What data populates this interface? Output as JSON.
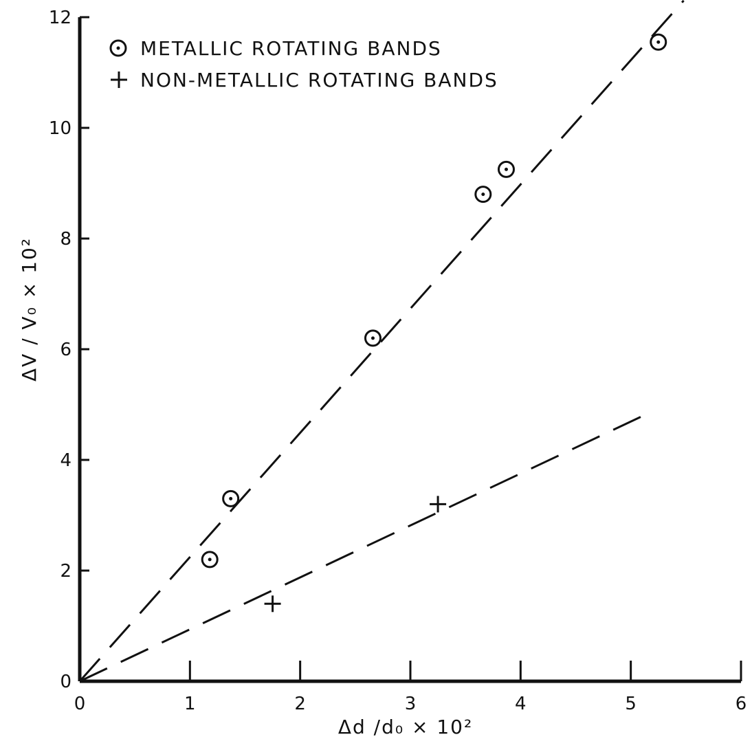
{
  "chart_data": {
    "type": "scatter",
    "xlabel": "Δd /d₀ × 10²",
    "ylabel": "ΔV / V₀ × 10²",
    "xlim": [
      0,
      6
    ],
    "ylim": [
      0,
      12
    ],
    "x_ticks": [
      "0",
      "1",
      "2",
      "3",
      "4",
      "5",
      "6"
    ],
    "y_ticks": [
      "0",
      "2",
      "4",
      "6",
      "8",
      "10",
      "12"
    ],
    "grid": false,
    "legend_position": "top-left",
    "series": [
      {
        "name": "METALLIC ROTATING BANDS",
        "marker": "dotted-circle",
        "points": [
          {
            "x": 1.18,
            "y": 2.2
          },
          {
            "x": 1.37,
            "y": 3.3
          },
          {
            "x": 2.66,
            "y": 6.2
          },
          {
            "x": 3.66,
            "y": 8.8
          },
          {
            "x": 3.87,
            "y": 9.25
          },
          {
            "x": 5.25,
            "y": 11.55
          }
        ],
        "fit_line": {
          "style": "dashed",
          "from": [
            0,
            0
          ],
          "to": [
            5.48,
            12.3
          ]
        }
      },
      {
        "name": "NON-METALLIC ROTATING BANDS",
        "marker": "plus",
        "points": [
          {
            "x": 1.75,
            "y": 1.4
          },
          {
            "x": 3.25,
            "y": 3.2
          }
        ],
        "fit_line": {
          "style": "dashed",
          "from": [
            0,
            0
          ],
          "to": [
            5.2,
            4.88
          ]
        }
      }
    ],
    "colors": {
      "ink": "#111111",
      "background": "#ffffff"
    }
  }
}
